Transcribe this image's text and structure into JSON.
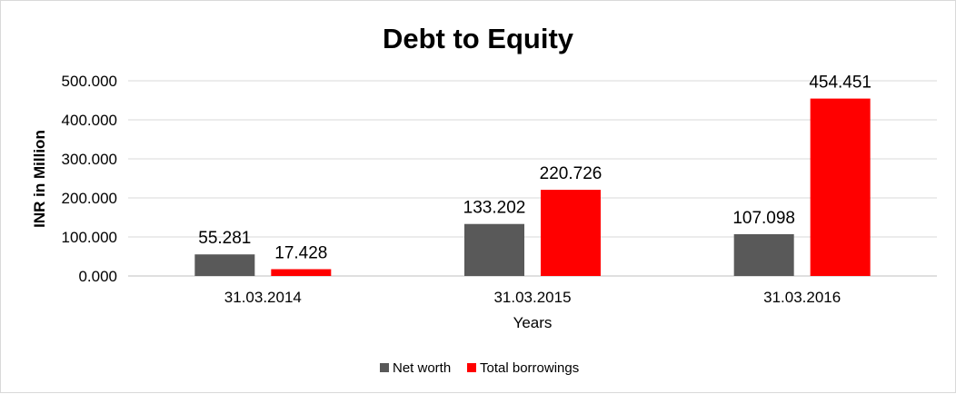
{
  "chart_data": {
    "type": "bar",
    "title": "Debt to Equity",
    "xlabel": "Years",
    "ylabel": "INR in Million",
    "categories": [
      "31.03.2014",
      "31.03.2015",
      "31.03.2016"
    ],
    "series": [
      {
        "name": "Net worth",
        "color": "#595959",
        "values": [
          55.281,
          133.202,
          107.098
        ],
        "labels": [
          "55.281",
          "133.202",
          "107.098"
        ]
      },
      {
        "name": "Total borrowings",
        "color": "#ff0000",
        "values": [
          17.428,
          220.726,
          454.451
        ],
        "labels": [
          "17.428",
          "220.726",
          "454.451"
        ]
      }
    ],
    "ylim": [
      0,
      500
    ],
    "yticks": [
      0,
      100,
      200,
      300,
      400,
      500
    ],
    "ytick_labels": [
      "0.000",
      "100.000",
      "200.000",
      "300.000",
      "400.000",
      "500.000"
    ],
    "grid": true,
    "legend_position": "bottom"
  }
}
